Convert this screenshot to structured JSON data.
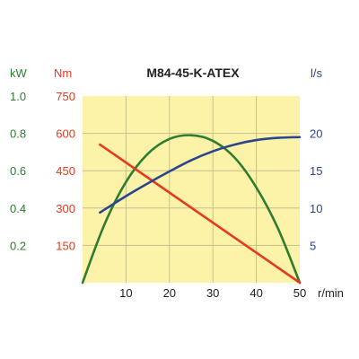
{
  "chart_data": {
    "type": "line",
    "title": "M84-45-K-ATEX",
    "xlabel": "r/min",
    "xlim": [
      0,
      50
    ],
    "x_ticks": [
      "10",
      "20",
      "30",
      "40",
      "50"
    ],
    "grid": true,
    "plot_background": "#fcf3a8",
    "axes": {
      "power": {
        "unit": "kW",
        "color": "#2e7d32",
        "range": [
          0,
          1.0
        ],
        "ticks": [
          "0.2",
          "0.4",
          "0.6",
          "0.8",
          "1.0"
        ]
      },
      "torque": {
        "unit": "Nm",
        "color": "#e53a1e",
        "range": [
          0,
          750
        ],
        "ticks": [
          "150",
          "300",
          "450",
          "600",
          "750"
        ]
      },
      "flow": {
        "unit": "l/s",
        "color": "#2b4590",
        "range": [
          0,
          25
        ],
        "ticks": [
          "5",
          "10",
          "15",
          "20"
        ]
      }
    },
    "series": [
      {
        "axis": "power",
        "color": "#2e7d32",
        "x": [
          0,
          5,
          10,
          15,
          20,
          25,
          30,
          35,
          40,
          45,
          50
        ],
        "y": [
          0,
          0.31,
          0.54,
          0.69,
          0.77,
          0.79,
          0.76,
          0.67,
          0.51,
          0.29,
          0
        ]
      },
      {
        "axis": "torque",
        "color": "#e53a1e",
        "x": [
          4,
          50
        ],
        "y": [
          555,
          0
        ]
      },
      {
        "axis": "flow",
        "color": "#2b4590",
        "x": [
          4,
          10,
          15,
          20,
          25,
          30,
          35,
          40,
          45,
          50
        ],
        "y": [
          9.4,
          11.6,
          13.3,
          14.9,
          16.4,
          17.6,
          18.5,
          19.1,
          19.4,
          19.5
        ]
      }
    ]
  }
}
